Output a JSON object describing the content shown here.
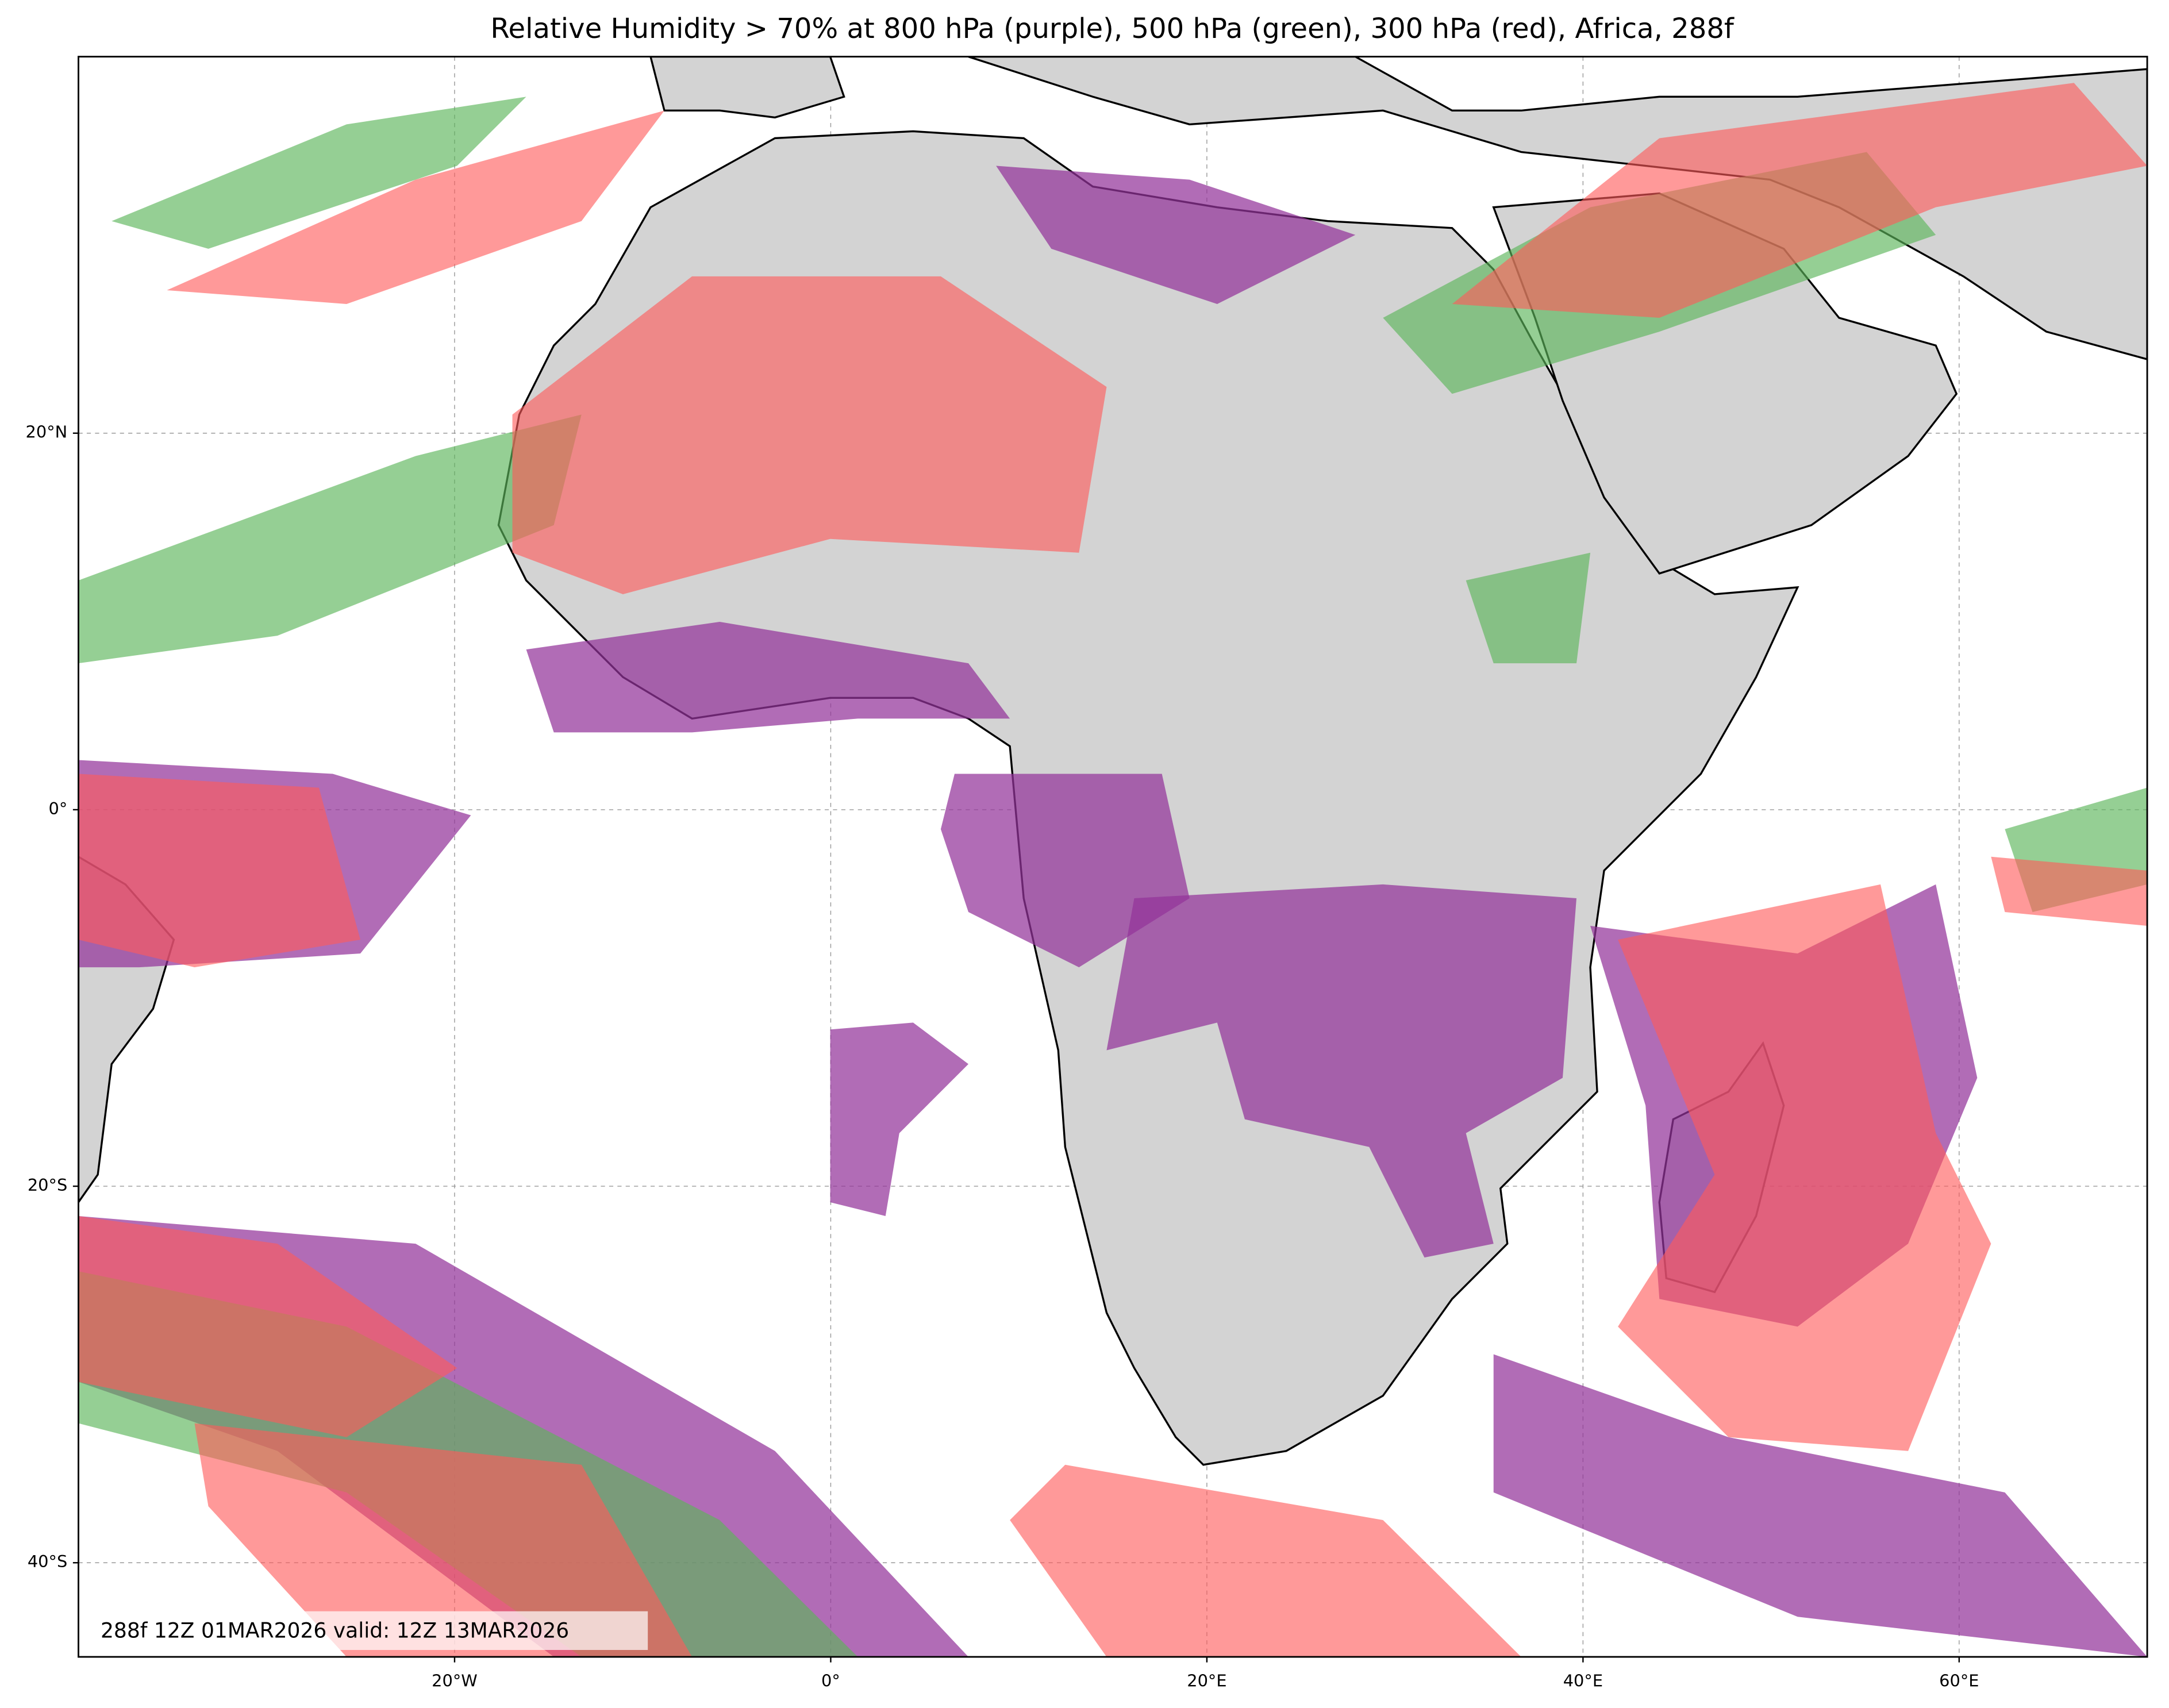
{
  "title": "Relative Humidity > 70% at 800 hPa (purple), 500 hPa (green), 300 hPa (red), Africa, 288f",
  "map": {
    "xlim": [
      -40,
      70
    ],
    "ylim": [
      -45,
      40
    ],
    "xticks": [
      {
        "value": -20,
        "label": "20°W"
      },
      {
        "value": 0,
        "label": "0°"
      },
      {
        "value": 20,
        "label": "20°E"
      },
      {
        "value": 40,
        "label": "40°E"
      },
      {
        "value": 60,
        "label": "60°E"
      }
    ],
    "yticks": [
      {
        "value": 20,
        "label": "20°N"
      },
      {
        "value": 0,
        "label": "0°"
      },
      {
        "value": -20,
        "label": "20°S"
      },
      {
        "value": -40,
        "label": "40°S"
      }
    ]
  },
  "annotation": "288f 12Z 01MAR2026 valid: 12Z 13MAR2026"
}
